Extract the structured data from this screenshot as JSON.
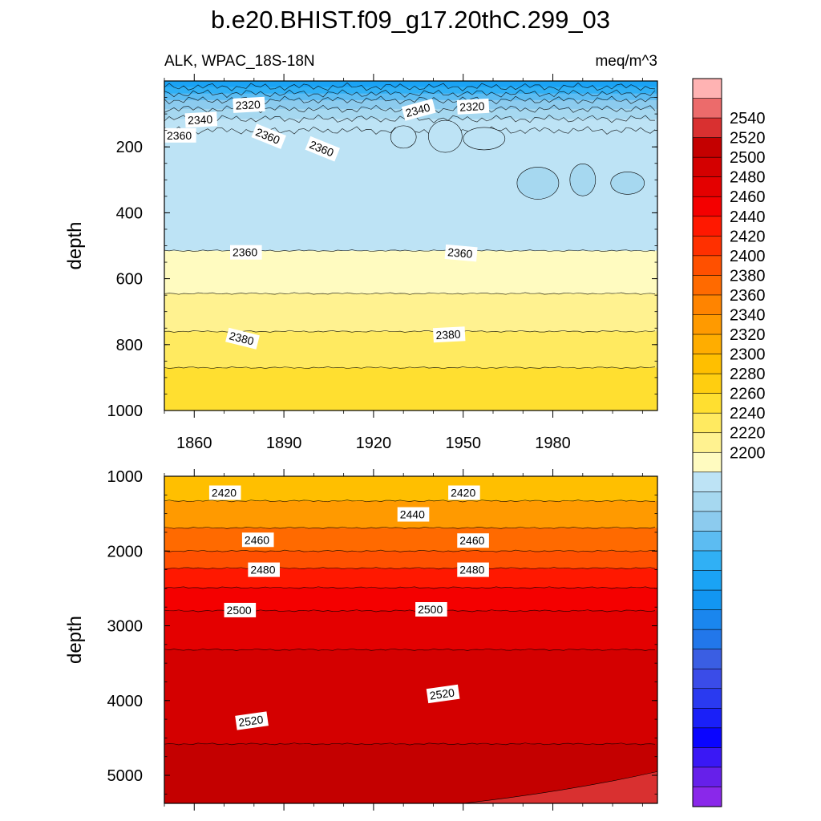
{
  "figure": {
    "title": "b.e20.BHIST.f09_g17.20thC.299_03",
    "left_subtitle": "ALK, WPAC_18S-18N",
    "right_subtitle": "meq/m^3"
  },
  "chart_data": [
    {
      "type": "heatmap",
      "panel": "upper",
      "ylabel": "depth",
      "xlabel": "",
      "xlim": [
        1850,
        2015
      ],
      "ylim": [
        0,
        1000
      ],
      "y_inverted": true,
      "x_ticks": [
        1860,
        1890,
        1920,
        1950,
        1980
      ],
      "y_ticks": [
        200,
        400,
        600,
        800,
        1000
      ],
      "y_tick_labels": [
        "200",
        "400",
        "600",
        "800",
        "1000"
      ],
      "bands": [
        {
          "from": 0,
          "to": 18,
          "level": 2300
        },
        {
          "from": 18,
          "to": 38,
          "level": 2310
        },
        {
          "from": 38,
          "to": 58,
          "level": 2320
        },
        {
          "from": 58,
          "to": 85,
          "level": 2330
        },
        {
          "from": 85,
          "to": 115,
          "level": 2340
        },
        {
          "from": 115,
          "to": 150,
          "level": 2350
        },
        {
          "from": 150,
          "to": 515,
          "level": 2350
        },
        {
          "from": 515,
          "to": 645,
          "level": 2360
        },
        {
          "from": 645,
          "to": 760,
          "level": 2370
        },
        {
          "from": 760,
          "to": 870,
          "level": 2380
        },
        {
          "from": 870,
          "to": 1000,
          "level": 2390
        }
      ],
      "contour_labels": [
        {
          "text": "2320",
          "x": 1873,
          "y": 75,
          "angle": -3
        },
        {
          "text": "2340",
          "x": 1857,
          "y": 120,
          "angle": -3
        },
        {
          "text": "2340",
          "x": 1930,
          "y": 100,
          "angle": -15
        },
        {
          "text": "2320",
          "x": 1948,
          "y": 80,
          "angle": -3
        },
        {
          "text": "2360",
          "x": 1850,
          "y": 165,
          "angle": 0
        },
        {
          "text": "2360",
          "x": 1880,
          "y": 150,
          "angle": 22
        },
        {
          "text": "2360",
          "x": 1898,
          "y": 188,
          "angle": 22
        },
        {
          "text": "2360",
          "x": 1872,
          "y": 520,
          "angle": 0
        },
        {
          "text": "2360",
          "x": 1944,
          "y": 518,
          "angle": 5
        },
        {
          "text": "2380",
          "x": 1871,
          "y": 770,
          "angle": 14
        },
        {
          "text": "2380",
          "x": 1940,
          "y": 772,
          "angle": -3
        }
      ]
    },
    {
      "type": "heatmap",
      "panel": "lower",
      "ylabel": "depth",
      "xlabel": "",
      "xlim": [
        1850,
        2015
      ],
      "ylim": [
        1000,
        5375
      ],
      "y_inverted": true,
      "x_ticks": [
        1860,
        1890,
        1920,
        1950,
        1980
      ],
      "y_ticks": [
        1000,
        2000,
        3000,
        4000,
        5000
      ],
      "y_tick_labels": [
        "1000",
        "2000",
        "3000",
        "4000",
        "5000"
      ],
      "bands": [
        {
          "from": 1000,
          "to": 1330,
          "level": 2410
        },
        {
          "from": 1330,
          "to": 1690,
          "level": 2430
        },
        {
          "from": 1690,
          "to": 2000,
          "level": 2450
        },
        {
          "from": 2000,
          "to": 2230,
          "level": 2460
        },
        {
          "from": 2230,
          "to": 2490,
          "level": 2480
        },
        {
          "from": 2490,
          "to": 2800,
          "level": 2490
        },
        {
          "from": 2800,
          "to": 3320,
          "level": 2500
        },
        {
          "from": 3320,
          "to": 4580,
          "level": 2510
        },
        {
          "from": 4580,
          "to": 5375,
          "level": 2520
        }
      ],
      "contour_labels": [
        {
          "text": "2420",
          "x": 1865,
          "y": 1220,
          "angle": 0
        },
        {
          "text": "2420",
          "x": 1945,
          "y": 1220,
          "angle": 0
        },
        {
          "text": "2440",
          "x": 1928,
          "y": 1510,
          "angle": 0
        },
        {
          "text": "2460",
          "x": 1876,
          "y": 1850,
          "angle": 0
        },
        {
          "text": "2460",
          "x": 1948,
          "y": 1860,
          "angle": 0
        },
        {
          "text": "2480",
          "x": 1878,
          "y": 2250,
          "angle": 0
        },
        {
          "text": "2480",
          "x": 1948,
          "y": 2250,
          "angle": 0
        },
        {
          "text": "2500",
          "x": 1870,
          "y": 2790,
          "angle": 0
        },
        {
          "text": "2500",
          "x": 1934,
          "y": 2780,
          "angle": 0
        },
        {
          "text": "2520",
          "x": 1874,
          "y": 4300,
          "angle": -8
        },
        {
          "text": "2520",
          "x": 1938,
          "y": 3940,
          "angle": -8
        }
      ]
    }
  ],
  "colorbar": {
    "tick_labels": [
      "2540",
      "2520",
      "2500",
      "2480",
      "2460",
      "2440",
      "2420",
      "2400",
      "2380",
      "2360",
      "2340",
      "2320",
      "2300",
      "2280",
      "2260",
      "2240",
      "2220",
      "2200"
    ],
    "colors": [
      "#ffb3b3",
      "#ec6b6b",
      "#d93030",
      "#c40000",
      "#d40000",
      "#e40000",
      "#f40000",
      "#ff1800",
      "#ff3000",
      "#ff5000",
      "#ff6a00",
      "#ff8400",
      "#ff9a00",
      "#ffad00",
      "#ffbf00",
      "#ffce10",
      "#ffdf30",
      "#ffea60",
      "#fff290",
      "#fffbc0",
      "#bde3f5",
      "#a6d8f0",
      "#8ccbee",
      "#5cbcf2",
      "#30b0f5",
      "#1aa3f5",
      "#1296f2",
      "#1a86ee",
      "#2277ea",
      "#3a5ee3",
      "#3a4ce8",
      "#2a3af0",
      "#1a20f8",
      "#0a05ff",
      "#3a18f5",
      "#6620ea",
      "#8a28ea"
    ]
  }
}
